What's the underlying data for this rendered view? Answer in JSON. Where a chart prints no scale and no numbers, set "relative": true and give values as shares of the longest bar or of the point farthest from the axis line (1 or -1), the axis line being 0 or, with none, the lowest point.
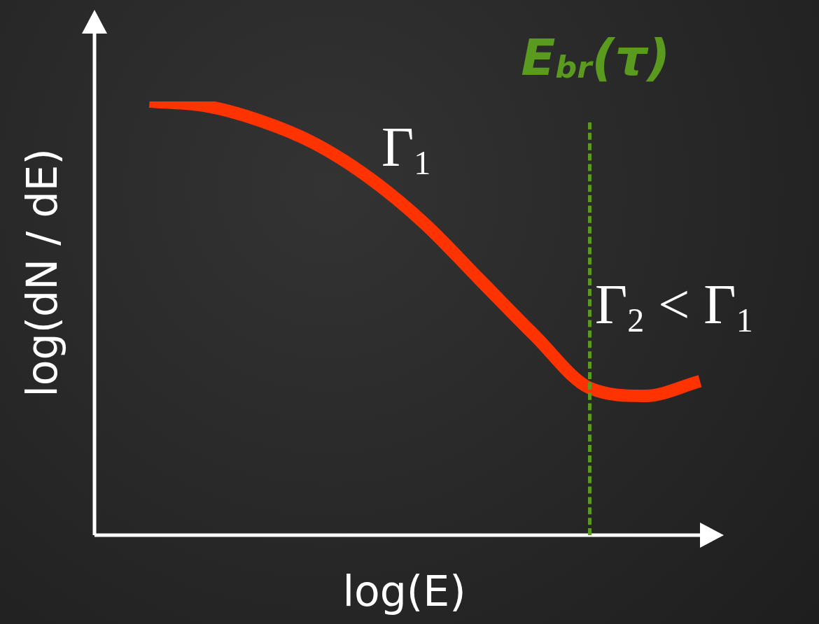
{
  "chart_data": {
    "type": "line",
    "relative": true,
    "xlabel": "log(E)",
    "ylabel": "log(dN / dE)",
    "categories": [
      null,
      null,
      null,
      null,
      null,
      null,
      null,
      null,
      null,
      null,
      null,
      null
    ],
    "series": [
      {
        "color": "#ff3300",
        "values": [
          null,
          1,
          0.99,
          0.956,
          0.903,
          0.823,
          0.718,
          0.589,
          0.46,
          0.339,
          0.321,
          0.355
        ]
      }
    ],
    "annotations": [
      "E$_{br}$(τ)",
      "Γ$_{1}$",
      "Γ$_{2}$ < Γ$_{1}$"
    ],
    "grid": false,
    "legend": false,
    "marker": "none",
    "line_style": "solid"
  }
}
